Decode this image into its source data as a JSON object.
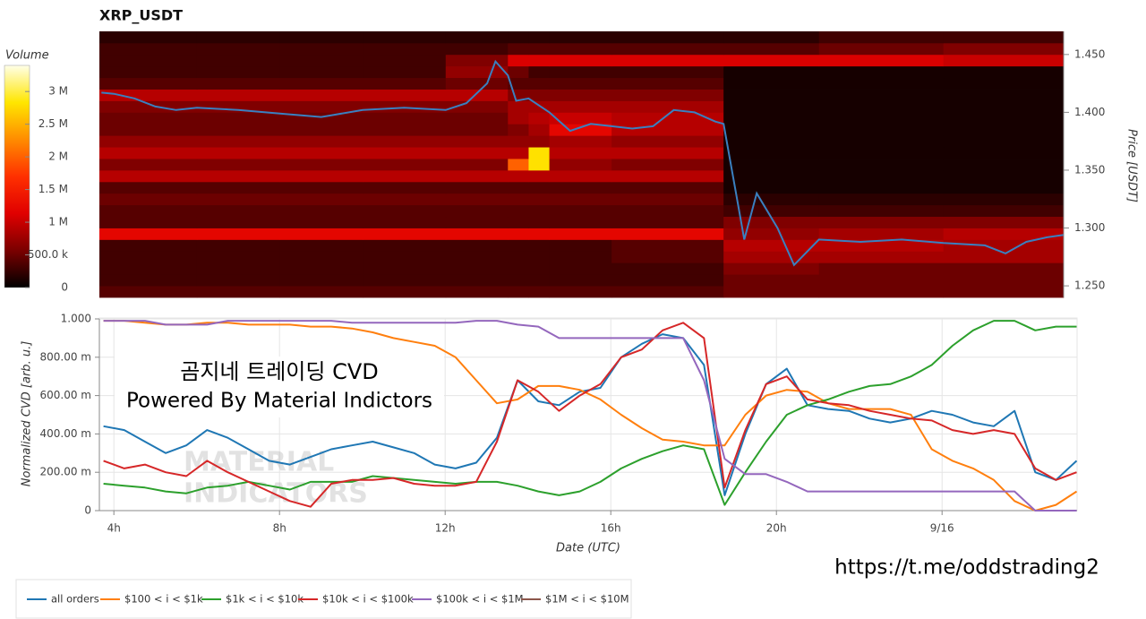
{
  "chart_data": [
    {
      "type": "heatmap",
      "title": "XRP_USDT",
      "colorbar_label": "Volume",
      "clim": [
        0,
        3400000.0
      ],
      "cticks": [
        0,
        {
          "value": 500000,
          "label": "500.0 k"
        },
        {
          "value": 1000000,
          "label": "1 M"
        },
        {
          "value": 1500000,
          "label": "1.5 M"
        },
        {
          "value": 2000000,
          "label": "2 M"
        },
        {
          "value": 2500000,
          "label": "2.5 M"
        },
        {
          "value": 3000000,
          "label": "3 M"
        }
      ],
      "colorscale": [
        "#000000",
        "#7a0000",
        "#e00000",
        "#ff3000",
        "#ff8c00",
        "#ffe600",
        "#ffffe8"
      ],
      "y_label": "Price [USDT]",
      "ylim": [
        1.24,
        1.47
      ],
      "yticks": [
        {
          "value": 1.25,
          "label": "1.250"
        },
        {
          "value": 1.3,
          "label": "1.300"
        },
        {
          "value": 1.35,
          "label": "1.350"
        },
        {
          "value": 1.4,
          "label": "1.400"
        },
        {
          "value": 1.45,
          "label": "1.450"
        }
      ],
      "xlim": [
        3.65,
        26.9
      ],
      "x_bins": [
        3.65,
        6,
        8,
        10,
        12,
        13.5,
        14,
        14.5,
        16,
        18.7,
        21,
        24,
        26.9
      ],
      "y_bins": [
        1.24,
        1.25,
        1.26,
        1.27,
        1.28,
        1.29,
        1.3,
        1.31,
        1.32,
        1.33,
        1.34,
        1.35,
        1.36,
        1.37,
        1.38,
        1.39,
        1.4,
        1.41,
        1.42,
        1.43,
        1.44,
        1.45,
        1.46,
        1.47
      ],
      "z": [
        [
          400000.0,
          400000.0,
          400000.0,
          400000.0,
          400000.0,
          400000.0,
          400000.0,
          400000.0,
          400000.0,
          500000.0,
          500000.0,
          500000.0
        ],
        [
          300000.0,
          300000.0,
          300000.0,
          300000.0,
          300000.0,
          300000.0,
          300000.0,
          300000.0,
          300000.0,
          500000.0,
          500000.0,
          500000.0
        ],
        [
          300000.0,
          300000.0,
          300000.0,
          300000.0,
          300000.0,
          300000.0,
          300000.0,
          300000.0,
          300000.0,
          600000.0,
          500000.0,
          500000.0
        ],
        [
          300000.0,
          300000.0,
          300000.0,
          300000.0,
          300000.0,
          300000.0,
          300000.0,
          300000.0,
          400000.0,
          800000.0,
          800000.0,
          800000.0
        ],
        [
          300000.0,
          300000.0,
          300000.0,
          300000.0,
          300000.0,
          300000.0,
          300000.0,
          300000.0,
          400000.0,
          900000.0,
          900000.0,
          800000.0
        ],
        [
          1200000.0,
          1200000.0,
          1200000.0,
          1200000.0,
          1200000.0,
          1200000.0,
          1200000.0,
          1200000.0,
          1200000.0,
          700000.0,
          800000.0,
          900000.0
        ],
        [
          400000.0,
          400000.0,
          400000.0,
          400000.0,
          400000.0,
          400000.0,
          400000.0,
          400000.0,
          400000.0,
          600000.0,
          600000.0,
          600000.0
        ],
        [
          400000.0,
          400000.0,
          400000.0,
          400000.0,
          400000.0,
          400000.0,
          400000.0,
          400000.0,
          400000.0,
          300000.0,
          300000.0,
          300000.0
        ],
        [
          500000.0,
          500000.0,
          500000.0,
          500000.0,
          500000.0,
          500000.0,
          500000.0,
          500000.0,
          500000.0,
          200000.0,
          200000.0,
          200000.0
        ],
        [
          400000.0,
          400000.0,
          400000.0,
          400000.0,
          400000.0,
          400000.0,
          400000.0,
          400000.0,
          400000.0,
          100000.0,
          100000.0,
          100000.0
        ],
        [
          900000.0,
          900000.0,
          900000.0,
          900000.0,
          900000.0,
          900000.0,
          900000.0,
          900000.0,
          900000.0,
          100000.0,
          100000.0,
          100000.0
        ],
        [
          600000.0,
          600000.0,
          600000.0,
          600000.0,
          600000.0,
          2000000.0,
          2800000.0,
          700000.0,
          600000.0,
          100000.0,
          100000.0,
          100000.0
        ],
        [
          900000.0,
          900000.0,
          900000.0,
          900000.0,
          900000.0,
          900000.0,
          2800000.0,
          900000.0,
          900000.0,
          100000.0,
          100000.0,
          100000.0
        ],
        [
          700000.0,
          700000.0,
          700000.0,
          700000.0,
          700000.0,
          700000.0,
          700000.0,
          800000.0,
          700000.0,
          100000.0,
          100000.0,
          100000.0
        ],
        [
          500000.0,
          500000.0,
          500000.0,
          500000.0,
          500000.0,
          600000.0,
          800000.0,
          1200000.0,
          900000.0,
          100000.0,
          100000.0,
          100000.0
        ],
        [
          500000.0,
          500000.0,
          500000.0,
          500000.0,
          500000.0,
          800000.0,
          900000.0,
          1000000.0,
          900000.0,
          100000.0,
          100000.0,
          100000.0
        ],
        [
          600000.0,
          600000.0,
          600000.0,
          600000.0,
          600000.0,
          800000.0,
          800000.0,
          800000.0,
          800000.0,
          100000.0,
          100000.0,
          100000.0
        ],
        [
          900000.0,
          900000.0,
          900000.0,
          900000.0,
          900000.0,
          600000.0,
          600000.0,
          600000.0,
          600000.0,
          100000.0,
          100000.0,
          100000.0
        ],
        [
          400000.0,
          400000.0,
          400000.0,
          400000.0,
          500000.0,
          400000.0,
          400000.0,
          400000.0,
          400000.0,
          100000.0,
          100000.0,
          100000.0
        ],
        [
          300000.0,
          300000.0,
          300000.0,
          300000.0,
          700000.0,
          500000.0,
          300000.0,
          300000.0,
          300000.0,
          100000.0,
          100000.0,
          100000.0
        ],
        [
          300000.0,
          300000.0,
          300000.0,
          300000.0,
          600000.0,
          1100000.0,
          1100000.0,
          1100000.0,
          1100000.0,
          1100000.0,
          1100000.0,
          1000000.0
        ],
        [
          300000.0,
          300000.0,
          300000.0,
          300000.0,
          300000.0,
          400000.0,
          400000.0,
          400000.0,
          400000.0,
          400000.0,
          500000.0,
          600000.0
        ],
        [
          200000.0,
          200000.0,
          200000.0,
          200000.0,
          200000.0,
          200000.0,
          200000.0,
          200000.0,
          200000.0,
          200000.0,
          300000.0,
          300000.0
        ]
      ],
      "line": {
        "color": "#3a80c0",
        "x": [
          3.7,
          4,
          4.5,
          5,
          5.5,
          6,
          7,
          8,
          9,
          10,
          11,
          12,
          12.5,
          13,
          13.2,
          13.5,
          13.7,
          14,
          14.5,
          15,
          15.5,
          16,
          16.5,
          17,
          17.5,
          18,
          18.5,
          18.7,
          19,
          19.2,
          19.5,
          20,
          20.4,
          21,
          22,
          23,
          24,
          25,
          25.5,
          26,
          26.5,
          26.9
        ],
        "values": [
          1.417,
          1.416,
          1.412,
          1.405,
          1.402,
          1.404,
          1.402,
          1.399,
          1.396,
          1.402,
          1.404,
          1.402,
          1.408,
          1.425,
          1.444,
          1.432,
          1.41,
          1.412,
          1.4,
          1.384,
          1.39,
          1.388,
          1.386,
          1.388,
          1.402,
          1.4,
          1.392,
          1.39,
          1.33,
          1.29,
          1.33,
          1.3,
          1.268,
          1.29,
          1.288,
          1.29,
          1.287,
          1.285,
          1.278,
          1.288,
          1.292,
          1.294
        ]
      }
    },
    {
      "type": "line",
      "y_label": "Normalized CVD [arb. u.]",
      "x_label": "Date (UTC)",
      "xlim": [
        3.65,
        27.26
      ],
      "ylim": [
        0,
        1
      ],
      "yticks": [
        0,
        {
          "value": 0.2,
          "label": "200.00 m"
        },
        {
          "value": 0.4,
          "label": "400.00 m"
        },
        {
          "value": 0.6,
          "label": "600.00 m"
        },
        {
          "value": 0.8,
          "label": "800.00 m"
        },
        {
          "value": 1,
          "label": "1.000"
        }
      ],
      "xticks": [
        {
          "value": 4,
          "label": "4h"
        },
        {
          "value": 8,
          "label": "8h"
        },
        {
          "value": 12,
          "label": "12h"
        },
        {
          "value": 16,
          "label": "16h"
        },
        {
          "value": 20,
          "label": "20h"
        },
        {
          "value": 24,
          "label": "9/16"
        }
      ],
      "grid": true,
      "legend": "bottom",
      "x": [
        3.75,
        4.25,
        4.75,
        5.25,
        5.75,
        6.25,
        6.75,
        7.25,
        7.75,
        8.25,
        8.75,
        9.25,
        9.75,
        10.25,
        10.75,
        11.25,
        11.75,
        12.25,
        12.75,
        13.25,
        13.75,
        14.25,
        14.75,
        15.25,
        15.75,
        16.25,
        16.75,
        17.25,
        17.75,
        18.25,
        18.75,
        19.25,
        19.75,
        20.25,
        20.75,
        21.25,
        21.75,
        22.25,
        22.75,
        23.25,
        23.75,
        24.25,
        24.75,
        25.25,
        25.75,
        26.25,
        26.75,
        27.25
      ],
      "series": [
        {
          "name": "all orders",
          "color": "#1f77b4",
          "values": [
            0.44,
            0.42,
            0.36,
            0.3,
            0.34,
            0.42,
            0.38,
            0.32,
            0.26,
            0.24,
            0.28,
            0.32,
            0.34,
            0.36,
            0.33,
            0.3,
            0.24,
            0.22,
            0.25,
            0.38,
            0.68,
            0.57,
            0.55,
            0.62,
            0.64,
            0.8,
            0.87,
            0.92,
            0.9,
            0.76,
            0.08,
            0.4,
            0.66,
            0.74,
            0.55,
            0.53,
            0.52,
            0.48,
            0.46,
            0.48,
            0.52,
            0.5,
            0.46,
            0.44,
            0.52,
            0.2,
            0.16,
            0.26
          ]
        },
        {
          "name": "$100 < i < $1k",
          "color": "#ff7f0e",
          "values": [
            0.99,
            0.99,
            0.98,
            0.97,
            0.97,
            0.98,
            0.98,
            0.97,
            0.97,
            0.97,
            0.96,
            0.96,
            0.95,
            0.93,
            0.9,
            0.88,
            0.86,
            0.8,
            0.68,
            0.56,
            0.58,
            0.65,
            0.65,
            0.63,
            0.58,
            0.5,
            0.43,
            0.37,
            0.36,
            0.34,
            0.34,
            0.5,
            0.6,
            0.63,
            0.62,
            0.56,
            0.53,
            0.53,
            0.53,
            0.5,
            0.32,
            0.26,
            0.22,
            0.16,
            0.05,
            0,
            0.03,
            0.1
          ]
        },
        {
          "name": "$1k < i < $10k",
          "color": "#2ca02c",
          "values": [
            0.14,
            0.13,
            0.12,
            0.1,
            0.09,
            0.12,
            0.13,
            0.15,
            0.13,
            0.11,
            0.15,
            0.15,
            0.15,
            0.18,
            0.17,
            0.16,
            0.15,
            0.14,
            0.15,
            0.15,
            0.13,
            0.1,
            0.08,
            0.1,
            0.15,
            0.22,
            0.27,
            0.31,
            0.34,
            0.32,
            0.03,
            0.2,
            0.36,
            0.5,
            0.55,
            0.58,
            0.62,
            0.65,
            0.66,
            0.7,
            0.76,
            0.86,
            0.94,
            0.99,
            0.99,
            0.94,
            0.96,
            0.96
          ]
        },
        {
          "name": "$10k < i < $100k",
          "color": "#d62728",
          "values": [
            0.26,
            0.22,
            0.24,
            0.2,
            0.18,
            0.26,
            0.2,
            0.15,
            0.1,
            0.05,
            0.02,
            0.14,
            0.16,
            0.16,
            0.17,
            0.14,
            0.13,
            0.13,
            0.15,
            0.36,
            0.68,
            0.62,
            0.52,
            0.6,
            0.66,
            0.8,
            0.84,
            0.94,
            0.98,
            0.9,
            0.12,
            0.42,
            0.66,
            0.7,
            0.58,
            0.56,
            0.55,
            0.52,
            0.5,
            0.48,
            0.47,
            0.42,
            0.4,
            0.42,
            0.4,
            0.22,
            0.16,
            0.2
          ]
        },
        {
          "name": "$100k < i < $1M",
          "color": "#9467bd",
          "values": [
            0.99,
            0.99,
            0.99,
            0.97,
            0.97,
            0.97,
            0.99,
            0.99,
            0.99,
            0.99,
            0.99,
            0.99,
            0.98,
            0.98,
            0.98,
            0.98,
            0.98,
            0.98,
            0.99,
            0.99,
            0.97,
            0.96,
            0.9,
            0.9,
            0.9,
            0.9,
            0.9,
            0.9,
            0.9,
            0.68,
            0.27,
            0.19,
            0.19,
            0.15,
            0.1,
            0.1,
            0.1,
            0.1,
            0.1,
            0.1,
            0.1,
            0.1,
            0.1,
            0.1,
            0.1,
            0,
            0,
            0
          ]
        },
        {
          "name": "$1M < i < $10M",
          "color": "#8c564b",
          "values": [
            null,
            null,
            null,
            null,
            null,
            null,
            null,
            null,
            null,
            null,
            null,
            null,
            null,
            null,
            null,
            null,
            null,
            null,
            null,
            null,
            null,
            null,
            null,
            null,
            null,
            null,
            null,
            null,
            null,
            null,
            null,
            null,
            null,
            null,
            null,
            null,
            null,
            null,
            null,
            null,
            null,
            null,
            null,
            null,
            null,
            null,
            null,
            null
          ]
        }
      ],
      "watermark": [
        "MATERIAL",
        "INDICATORS"
      ],
      "annotations": [
        "곰지네 트레이딩 CVD",
        "Powered By Material Indictors",
        "https://t.me/oddstrading2"
      ]
    }
  ]
}
